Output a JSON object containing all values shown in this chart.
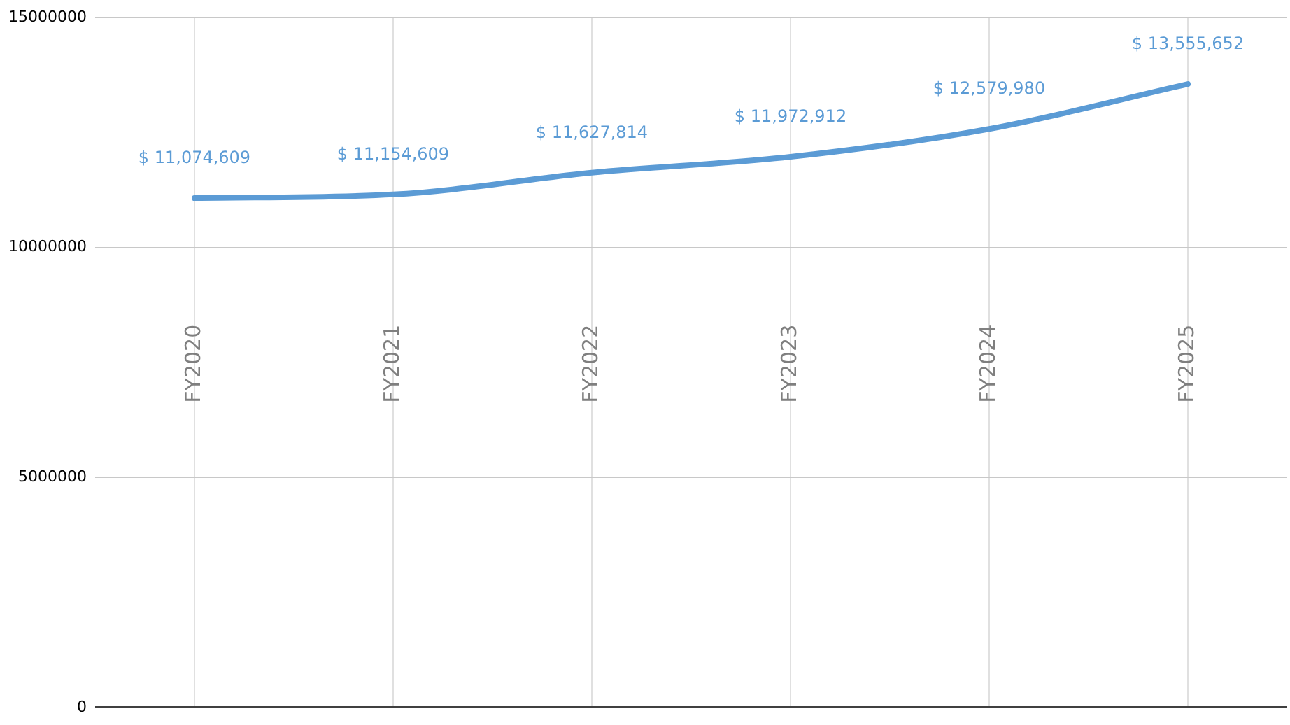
{
  "chart_data": {
    "type": "line",
    "categories": [
      "FY2020",
      "FY2021",
      "FY2022",
      "FY2023",
      "FY2024",
      "FY2025"
    ],
    "series": [
      {
        "color": "#5b9bd5",
        "values": [
          11074609,
          11154609,
          11627814,
          11972912,
          12579980,
          13555652
        ]
      }
    ],
    "value_labels": [
      "$ 11,074,609",
      "$ 11,154,609",
      "$ 11,627,814",
      "$ 11,972,912",
      "$ 12,579,980",
      "$ 13,555,652"
    ],
    "ylim": [
      0,
      15000000
    ],
    "yticks": [
      0,
      5000000,
      10000000,
      15000000
    ],
    "grid": true,
    "legend": false,
    "marker": "none",
    "line_style": "solid"
  }
}
